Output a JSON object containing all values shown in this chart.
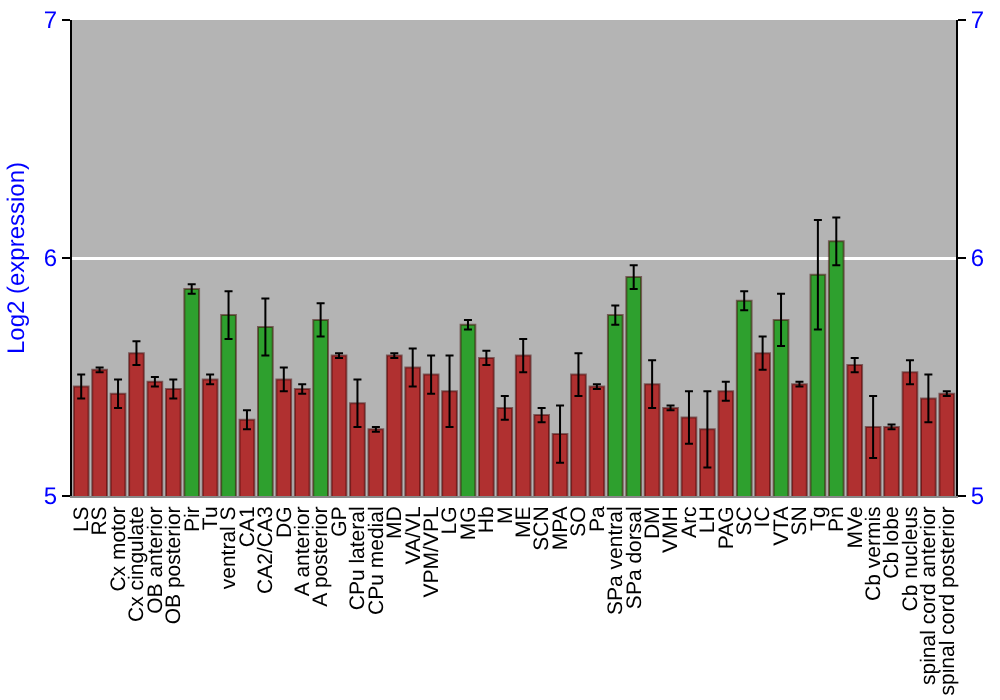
{
  "chart_data": {
    "type": "bar",
    "ylabel": "Log2 (expression)",
    "categories": [
      "LS",
      "RS",
      "Cx motor",
      "Cx cingulate",
      "OB anterior",
      "OB posterior",
      "Pir",
      "Tu",
      "ventral S",
      "CA1",
      "CA2/CA3",
      "DG",
      "A anterior",
      "A posterior",
      "GP",
      "CPu lateral",
      "CPu medial",
      "MD",
      "VA/VL",
      "VPM/VPL",
      "LG",
      "MG",
      "Hb",
      "M",
      "ME",
      "SCN",
      "MPA",
      "SO",
      "Pa",
      "SPa ventral",
      "SPa dorsal",
      "DM",
      "VMH",
      "Arc",
      "LH",
      "PAG",
      "SC",
      "IC",
      "VTA",
      "SN",
      "Tg",
      "Pn",
      "MVe",
      "Cb vermis",
      "Cb lobe",
      "Cb nucleus",
      "spinal cord anterior",
      "spinal cord posterior"
    ],
    "values": [
      5.46,
      5.53,
      5.43,
      5.6,
      5.48,
      5.45,
      5.87,
      5.49,
      5.76,
      5.32,
      5.71,
      5.49,
      5.45,
      5.74,
      5.59,
      5.39,
      5.28,
      5.59,
      5.54,
      5.51,
      5.44,
      5.72,
      5.58,
      5.37,
      5.59,
      5.34,
      5.26,
      5.51,
      5.46,
      5.76,
      5.92,
      5.47,
      5.37,
      5.33,
      5.28,
      5.44,
      5.82,
      5.6,
      5.74,
      5.47,
      5.93,
      6.07,
      5.55,
      5.29,
      5.29,
      5.52,
      5.41,
      5.43
    ],
    "errors": [
      0.05,
      0.01,
      0.06,
      0.05,
      0.02,
      0.04,
      0.02,
      0.02,
      0.1,
      0.04,
      0.12,
      0.05,
      0.02,
      0.07,
      0.01,
      0.1,
      0.01,
      0.01,
      0.08,
      0.08,
      0.15,
      0.02,
      0.03,
      0.05,
      0.07,
      0.03,
      0.12,
      0.09,
      0.01,
      0.04,
      0.05,
      0.1,
      0.01,
      0.11,
      0.16,
      0.04,
      0.04,
      0.07,
      0.11,
      0.01,
      0.23,
      0.1,
      0.03,
      0.13,
      0.01,
      0.05,
      0.1,
      0.01
    ],
    "colors": [
      "#b03030",
      "#b03030",
      "#b03030",
      "#b03030",
      "#b03030",
      "#b03030",
      "#2ea02e",
      "#b03030",
      "#2ea02e",
      "#b03030",
      "#2ea02e",
      "#b03030",
      "#b03030",
      "#2ea02e",
      "#b03030",
      "#b03030",
      "#b03030",
      "#b03030",
      "#b03030",
      "#b03030",
      "#b03030",
      "#2ea02e",
      "#b03030",
      "#b03030",
      "#b03030",
      "#b03030",
      "#b03030",
      "#b03030",
      "#b03030",
      "#2ea02e",
      "#2ea02e",
      "#b03030",
      "#b03030",
      "#b03030",
      "#b03030",
      "#b03030",
      "#2ea02e",
      "#b03030",
      "#2ea02e",
      "#b03030",
      "#2ea02e",
      "#2ea02e",
      "#b03030",
      "#b03030",
      "#b03030",
      "#b03030",
      "#b03030",
      "#b03030"
    ],
    "ylim": [
      5,
      7
    ],
    "yticks": [
      5,
      6,
      7
    ],
    "y2lim": [
      5,
      7
    ],
    "y2ticks": [
      5,
      6,
      7
    ],
    "grid": "y"
  }
}
